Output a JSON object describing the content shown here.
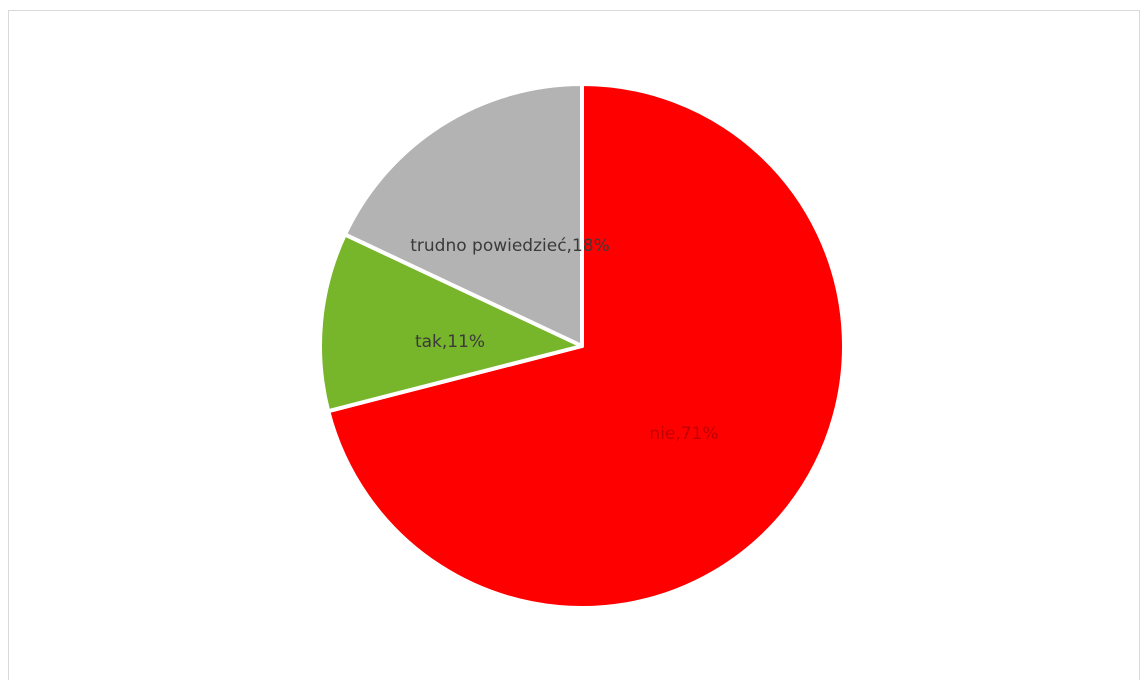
{
  "chart_data": {
    "type": "pie",
    "slices": [
      {
        "category": "nie",
        "value": 71,
        "label": "nie,71%",
        "color": "#ff0000",
        "label_color": "#c00000"
      },
      {
        "category": "tak",
        "value": 11,
        "label": "tak,11%",
        "color": "#77b52a",
        "label_color": "#3a3a3a"
      },
      {
        "category": "trudno powiedzieć",
        "value": 18,
        "label": "trudno powiedzieć,18%",
        "color": "#b3b3b3",
        "label_color": "#3a3a3a"
      }
    ]
  }
}
